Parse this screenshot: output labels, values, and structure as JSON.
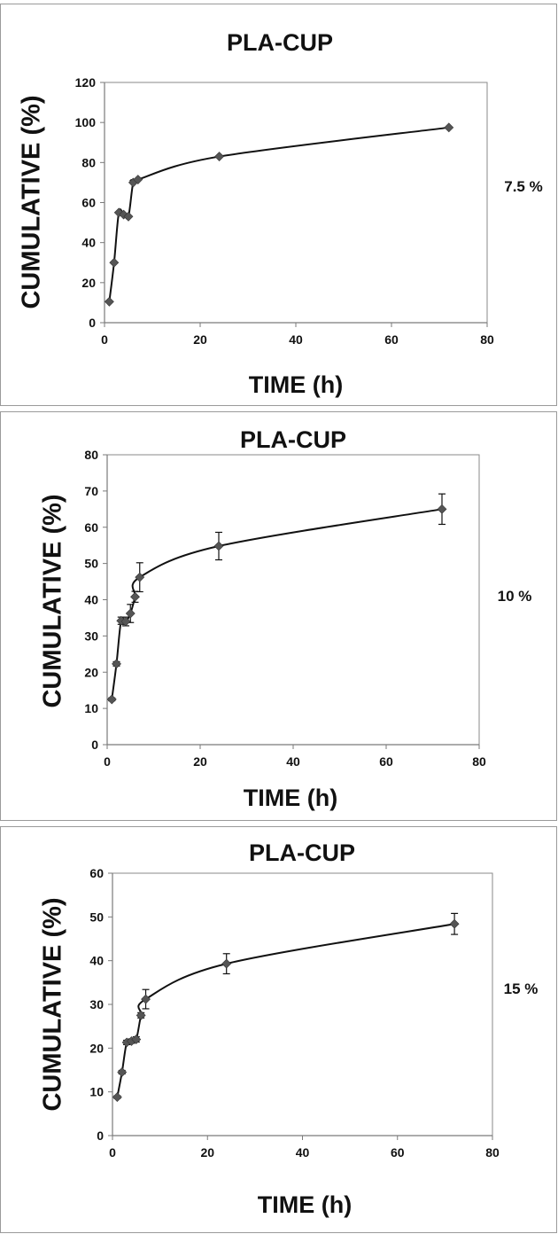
{
  "chart_data": [
    {
      "type": "line",
      "title": "PLA-CUP",
      "xlabel": "TIME (h)",
      "ylabel": "CUMULATIVE (%)",
      "side_label": "7.5 %",
      "xlim": [
        0,
        80
      ],
      "ylim": [
        0,
        120
      ],
      "xticks": [
        0,
        20,
        40,
        60,
        80
      ],
      "yticks": [
        0,
        20,
        40,
        60,
        80,
        100,
        120
      ],
      "grid": false,
      "error_bars": false,
      "series": [
        {
          "color": "#555555",
          "x": [
            1,
            2,
            3,
            4,
            5,
            6,
            7,
            24,
            72
          ],
          "y": [
            10.5,
            30,
            55,
            54,
            53,
            70,
            71.5,
            83,
            97.5
          ],
          "err": [
            0,
            0,
            0,
            0,
            0,
            0,
            0,
            0,
            0
          ]
        }
      ]
    },
    {
      "type": "line",
      "title": "PLA-CUP",
      "xlabel": "TIME (h)",
      "ylabel": "CUMULATIVE (%)",
      "side_label": "10 %",
      "xlim": [
        0,
        80
      ],
      "ylim": [
        0,
        80
      ],
      "xticks": [
        0,
        20,
        40,
        60,
        80
      ],
      "yticks": [
        0,
        10,
        20,
        30,
        40,
        50,
        60,
        70,
        80
      ],
      "grid": false,
      "error_bars": true,
      "series": [
        {
          "color": "#555555",
          "x": [
            1,
            2,
            3,
            4,
            5,
            6,
            7,
            24,
            72
          ],
          "y": [
            12.5,
            22.3,
            34.2,
            34.0,
            36.2,
            40.8,
            46.2,
            54.8,
            65.0
          ],
          "err": [
            0.4,
            0.6,
            1.0,
            1.2,
            2.5,
            1.5,
            4.0,
            3.8,
            4.2
          ]
        }
      ]
    },
    {
      "type": "line",
      "title": "PLA-CUP",
      "xlabel": "TIME (h)",
      "ylabel": "CUMULATIVE (%)",
      "side_label": "15 %",
      "xlim": [
        0,
        80
      ],
      "ylim": [
        0,
        60
      ],
      "xticks": [
        0,
        20,
        40,
        60,
        80
      ],
      "yticks": [
        0,
        10,
        20,
        30,
        40,
        50,
        60
      ],
      "grid": false,
      "error_bars": true,
      "series": [
        {
          "color": "#555555",
          "x": [
            1,
            2,
            3,
            4,
            5,
            6,
            7,
            24,
            72
          ],
          "y": [
            8.8,
            14.5,
            21.3,
            21.6,
            22.0,
            27.5,
            31.2,
            39.3,
            48.4
          ],
          "err": [
            0.3,
            0.4,
            0.5,
            0.5,
            0.6,
            0.6,
            2.2,
            2.3,
            2.4
          ]
        }
      ]
    }
  ]
}
